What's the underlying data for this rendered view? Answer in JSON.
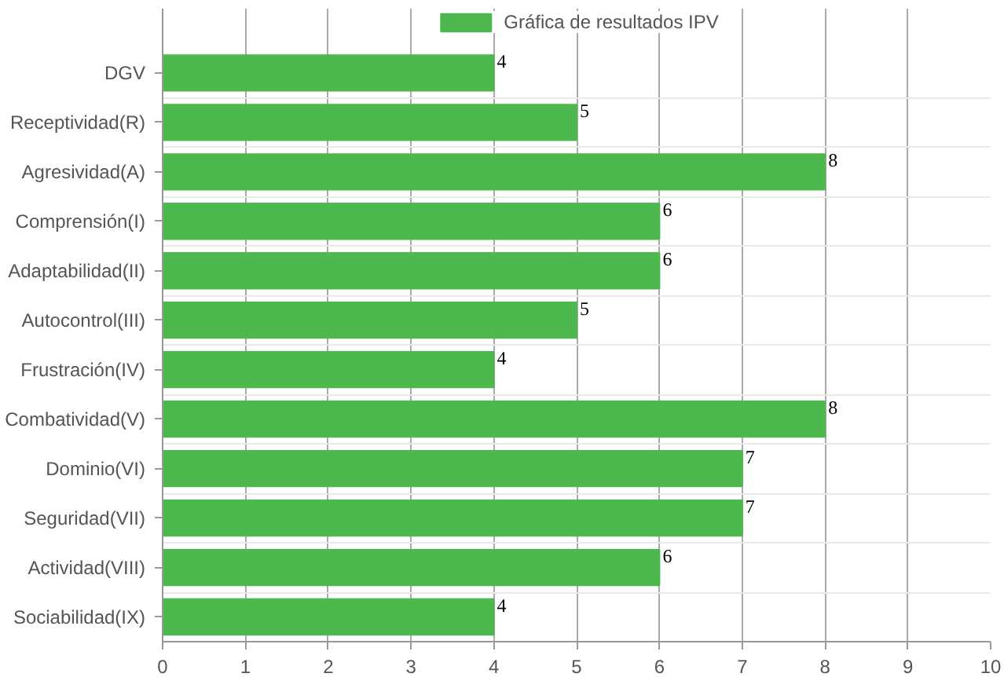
{
  "chart_data": {
    "type": "bar",
    "orientation": "horizontal",
    "categories": [
      "DGV",
      "Receptividad(R)",
      "Agresividad(A)",
      "Comprensión(I)",
      "Adaptabilidad(II)",
      "Autocontrol(III)",
      "Frustración(IV)",
      "Combatividad(V)",
      "Dominio(VI)",
      "Seguridad(VII)",
      "Actividad(VIII)",
      "Sociabilidad(IX)"
    ],
    "series": [
      {
        "name": "Gráfica de resultados IPV",
        "color": "#4db84d",
        "values": [
          4,
          5,
          8,
          6,
          6,
          5,
          4,
          8,
          7,
          7,
          6,
          4
        ]
      }
    ],
    "xlim": [
      0,
      10
    ],
    "xticks": [
      0,
      1,
      2,
      3,
      4,
      5,
      6,
      7,
      8,
      9,
      10
    ],
    "grid": true,
    "legend": "top",
    "data_labels": true
  }
}
